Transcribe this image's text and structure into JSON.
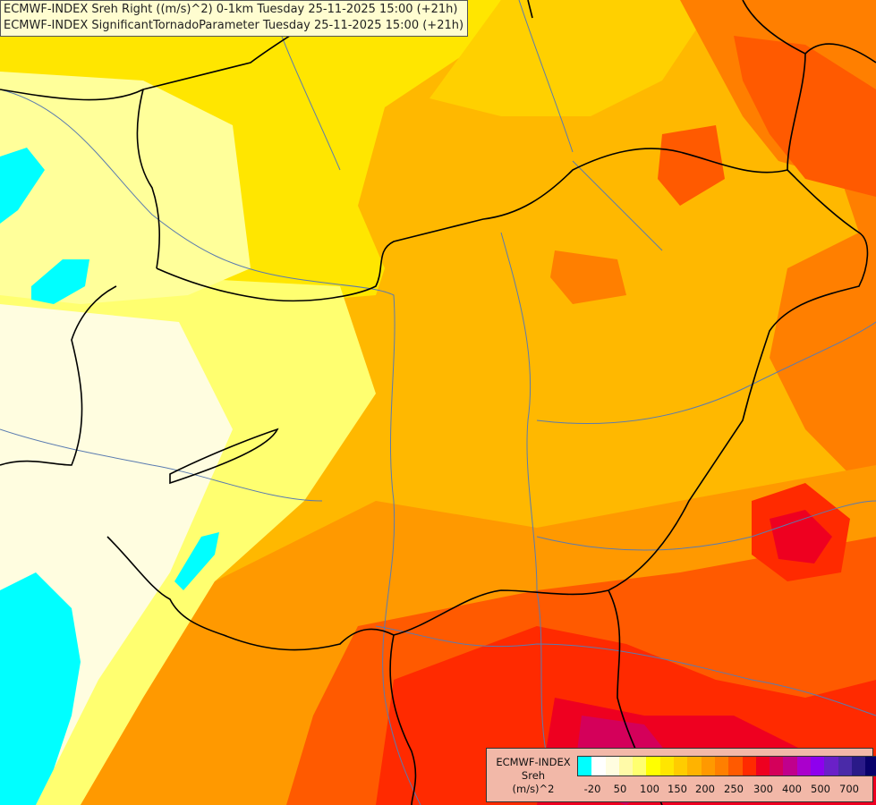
{
  "title": {
    "line1": "ECMWF-INDEX Sreh Right ((m/s)^2) 0-1km Tuesday 25-11-2025 15:00 (+21h)",
    "line2": "ECMWF-INDEX SignificantTornadoParameter Tuesday 25-11-2025 15:00 (+21h)"
  },
  "legend": {
    "model": "ECMWF-INDEX",
    "parameter": "Sreh",
    "unit": "(m/s)^2",
    "colors": [
      "#00ffff",
      "#ffffff",
      "#fffde0",
      "#fffaa8",
      "#ffff70",
      "#ffff00",
      "#ffe600",
      "#ffcc00",
      "#ffb300",
      "#ff9900",
      "#ff7f00",
      "#ff5a00",
      "#ff2a00",
      "#ee0020",
      "#d4005a",
      "#c0008c",
      "#aa00cc",
      "#8e00ee",
      "#6a20c8",
      "#4a2aa8",
      "#2a1a88",
      "#08006a"
    ],
    "ticks": [
      "-20",
      "50",
      "100",
      "150",
      "200",
      "250",
      "300",
      "400",
      "500",
      "700"
    ]
  }
}
